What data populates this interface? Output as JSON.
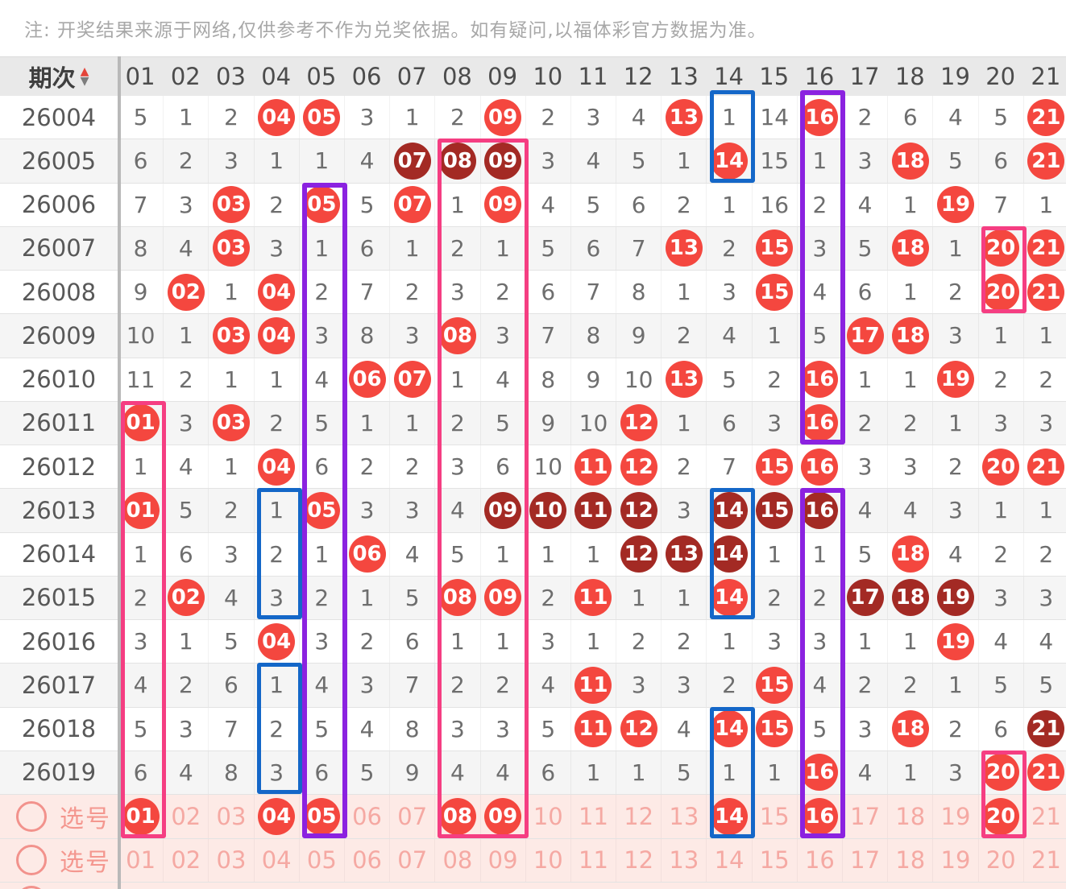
{
  "note": "注: 开奖结果来源于网络,仅供参考不作为兑奖依据。如有疑问,以福体彩官方数据为准。",
  "header": {
    "period_label": "期次",
    "columns": [
      "01",
      "02",
      "03",
      "04",
      "05",
      "06",
      "07",
      "08",
      "09",
      "10",
      "11",
      "12",
      "13",
      "14",
      "15",
      "16",
      "17",
      "18",
      "19",
      "20",
      "21"
    ]
  },
  "icons": {
    "sort_up": "▲",
    "sort_down": "▼",
    "select_checkbox": "circle-outline"
  },
  "legend": {
    "cell_flags": "R = drawn number (bright red ball), D = repeat drawn number (dark red ball), plain = miss count"
  },
  "rows": [
    {
      "period": "26004",
      "cells": [
        "5",
        "1",
        "2",
        "04:R",
        "05:R",
        "3",
        "1",
        "2",
        "09:R",
        "2",
        "3",
        "4",
        "13:R",
        "1",
        "14",
        "16:R",
        "2",
        "6",
        "4",
        "5",
        "21:R"
      ]
    },
    {
      "period": "26005",
      "cells": [
        "6",
        "2",
        "3",
        "1",
        "1",
        "4",
        "07:D",
        "08:D",
        "09:D",
        "3",
        "4",
        "5",
        "1",
        "14:R",
        "15",
        "1",
        "3",
        "18:R",
        "5",
        "6",
        "21:R"
      ]
    },
    {
      "period": "26006",
      "cells": [
        "7",
        "3",
        "03:R",
        "2",
        "05:R",
        "5",
        "07:R",
        "1",
        "09:R",
        "4",
        "5",
        "6",
        "2",
        "1",
        "16",
        "2",
        "4",
        "1",
        "19:R",
        "7",
        "1"
      ]
    },
    {
      "period": "26007",
      "cells": [
        "8",
        "4",
        "03:R",
        "3",
        "1",
        "6",
        "1",
        "2",
        "1",
        "5",
        "6",
        "7",
        "13:R",
        "2",
        "15:R",
        "3",
        "5",
        "18:R",
        "1",
        "20:R",
        "21:R"
      ]
    },
    {
      "period": "26008",
      "cells": [
        "9",
        "02:R",
        "1",
        "04:R",
        "2",
        "7",
        "2",
        "3",
        "2",
        "6",
        "7",
        "8",
        "1",
        "3",
        "15:R",
        "4",
        "6",
        "1",
        "2",
        "20:R",
        "21:R"
      ]
    },
    {
      "period": "26009",
      "cells": [
        "10",
        "1",
        "03:R",
        "04:R",
        "3",
        "8",
        "3",
        "08:R",
        "3",
        "7",
        "8",
        "9",
        "2",
        "4",
        "1",
        "5",
        "17:R",
        "18:R",
        "3",
        "1",
        "1"
      ]
    },
    {
      "period": "26010",
      "cells": [
        "11",
        "2",
        "1",
        "1",
        "4",
        "06:R",
        "07:R",
        "1",
        "4",
        "8",
        "9",
        "10",
        "13:R",
        "5",
        "2",
        "16:R",
        "1",
        "1",
        "19:R",
        "2",
        "2"
      ]
    },
    {
      "period": "26011",
      "cells": [
        "01:R",
        "3",
        "03:R",
        "2",
        "5",
        "1",
        "1",
        "2",
        "5",
        "9",
        "10",
        "12:R",
        "1",
        "6",
        "3",
        "16:R",
        "2",
        "2",
        "1",
        "3",
        "3"
      ]
    },
    {
      "period": "26012",
      "cells": [
        "1",
        "4",
        "1",
        "04:R",
        "6",
        "2",
        "2",
        "3",
        "6",
        "10",
        "11:R",
        "12:R",
        "2",
        "7",
        "15:R",
        "16:R",
        "3",
        "3",
        "2",
        "20:R",
        "21:R"
      ]
    },
    {
      "period": "26013",
      "cells": [
        "01:R",
        "5",
        "2",
        "1",
        "05:R",
        "3",
        "3",
        "4",
        "09:D",
        "10:D",
        "11:D",
        "12:D",
        "3",
        "14:D",
        "15:D",
        "16:D",
        "4",
        "4",
        "3",
        "1",
        "1"
      ]
    },
    {
      "period": "26014",
      "cells": [
        "1",
        "6",
        "3",
        "2",
        "1",
        "06:R",
        "4",
        "5",
        "1",
        "1",
        "1",
        "12:D",
        "13:D",
        "14:D",
        "1",
        "1",
        "5",
        "18:R",
        "4",
        "2",
        "2"
      ]
    },
    {
      "period": "26015",
      "cells": [
        "2",
        "02:R",
        "4",
        "3",
        "2",
        "1",
        "5",
        "08:R",
        "09:R",
        "2",
        "11:R",
        "1",
        "1",
        "14:R",
        "2",
        "2",
        "17:D",
        "18:D",
        "19:D",
        "3",
        "3"
      ]
    },
    {
      "period": "26016",
      "cells": [
        "3",
        "1",
        "5",
        "04:R",
        "3",
        "2",
        "6",
        "1",
        "1",
        "3",
        "1",
        "2",
        "2",
        "1",
        "3",
        "3",
        "1",
        "1",
        "19:R",
        "4",
        "4"
      ]
    },
    {
      "period": "26017",
      "cells": [
        "4",
        "2",
        "6",
        "1",
        "4",
        "3",
        "7",
        "2",
        "2",
        "4",
        "11:R",
        "3",
        "3",
        "2",
        "15:R",
        "4",
        "2",
        "2",
        "1",
        "5",
        "5"
      ]
    },
    {
      "period": "26018",
      "cells": [
        "5",
        "3",
        "7",
        "2",
        "5",
        "4",
        "8",
        "3",
        "3",
        "5",
        "11:R",
        "12:R",
        "4",
        "14:R",
        "15:R",
        "5",
        "3",
        "18:R",
        "2",
        "6",
        "21:D"
      ]
    },
    {
      "period": "26019",
      "cells": [
        "6",
        "4",
        "8",
        "3",
        "6",
        "5",
        "9",
        "4",
        "4",
        "6",
        "1",
        "1",
        "5",
        "1",
        "1",
        "16:R",
        "4",
        "1",
        "3",
        "20:R",
        "21:R"
      ]
    }
  ],
  "select_rows": [
    {
      "label": "选号",
      "cells": [
        "01:R",
        "02",
        "03",
        "04:R",
        "05:R",
        "06",
        "07",
        "08:R",
        "09:R",
        "10",
        "11",
        "12",
        "13",
        "14:R",
        "15",
        "16:R",
        "17",
        "18",
        "19",
        "20:R",
        "21"
      ]
    },
    {
      "label": "选号",
      "cells": [
        "01",
        "02",
        "03",
        "04",
        "05",
        "06",
        "07",
        "08",
        "09",
        "10",
        "11",
        "12",
        "13",
        "14",
        "15",
        "16",
        "17",
        "18",
        "19",
        "20",
        "21"
      ]
    }
  ],
  "boxes": [
    {
      "color": "pink",
      "c1": 8,
      "c2": 9,
      "r1": 1,
      "r2": 16
    },
    {
      "color": "pink",
      "c1": 20,
      "c2": 20,
      "r1": 3,
      "r2": 4
    },
    {
      "color": "pink",
      "c1": 1,
      "c2": 1,
      "r1": 7,
      "r2": 16
    },
    {
      "color": "pink",
      "c1": 20,
      "c2": 20,
      "r1": 15,
      "r2": 16
    },
    {
      "color": "purple",
      "c1": 16,
      "c2": 16,
      "r1": 0,
      "r2": 7
    },
    {
      "color": "purple",
      "c1": 16,
      "c2": 16,
      "r1": 9,
      "r2": 16
    },
    {
      "color": "purple",
      "c1": 5,
      "c2": 5,
      "r1": 2,
      "r2": 16
    },
    {
      "color": "blue",
      "c1": 14,
      "c2": 14,
      "r1": 0,
      "r2": 1
    },
    {
      "color": "blue",
      "c1": 14,
      "c2": 14,
      "r1": 9,
      "r2": 11
    },
    {
      "color": "blue",
      "c1": 14,
      "c2": 14,
      "r1": 14,
      "r2": 16
    },
    {
      "color": "blue",
      "c1": 4,
      "c2": 4,
      "r1": 9,
      "r2": 11
    },
    {
      "color": "blue",
      "c1": 4,
      "c2": 4,
      "r1": 13,
      "r2": 15
    }
  ],
  "colors": {
    "ball_red": "#f4473f",
    "ball_dark": "#a32a24",
    "box_pink": "#f53e82",
    "box_purple": "#8b22e0",
    "box_blue": "#1467c8",
    "header_bg": "#e9e9e9",
    "row_alt_bg": "#f5f5f5",
    "select_bg": "#fdeae6",
    "select_text": "#f5a9a3",
    "note_text": "#a8a8a8"
  }
}
